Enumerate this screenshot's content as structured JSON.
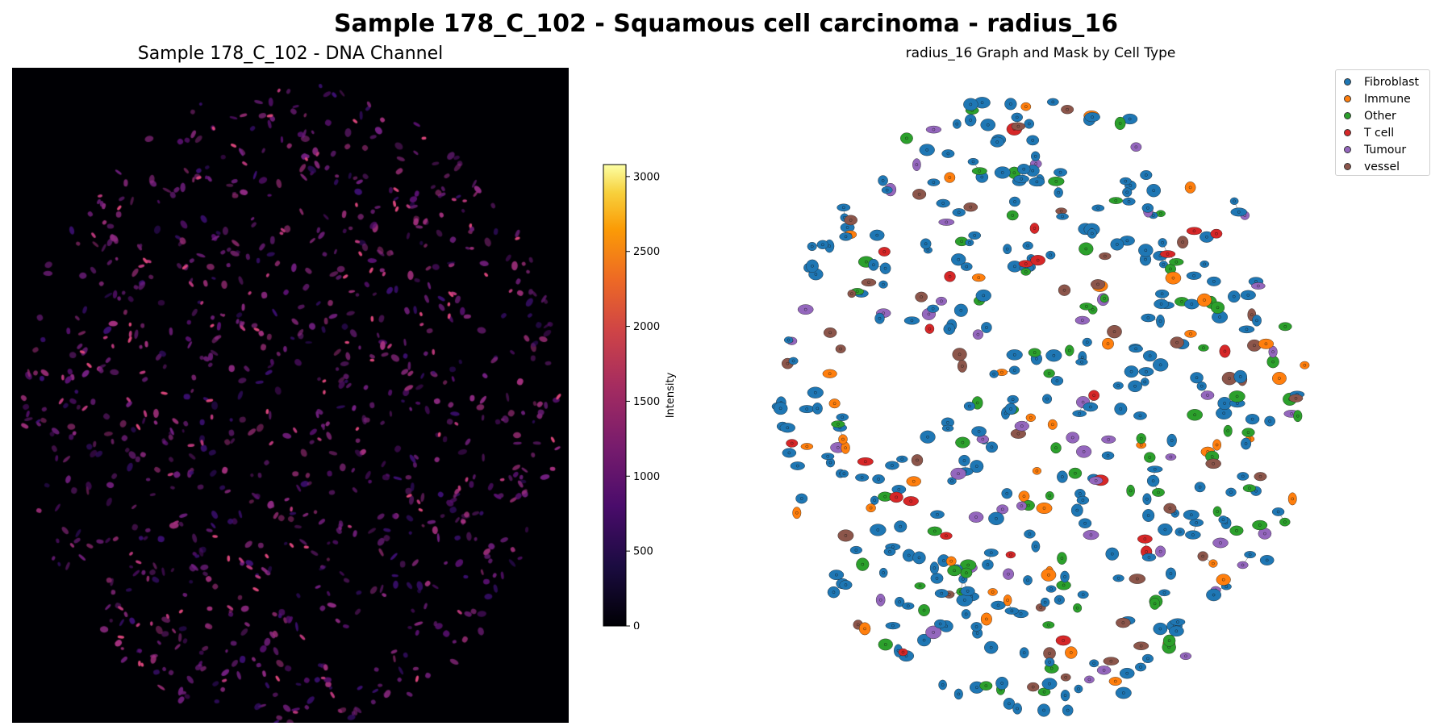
{
  "figure": {
    "suptitle": "Sample 178_C_102 - Squamous cell carcinoma - radius_16"
  },
  "chart_data": [
    {
      "type": "heatmap",
      "title": "Sample 178_C_102 - DNA Channel",
      "colormap": "inferno",
      "colorbar": {
        "label": "Intensity",
        "range": [
          0,
          3080
        ],
        "ticks": [
          0,
          500,
          1000,
          1500,
          2000,
          2500,
          3000
        ]
      },
      "background_color": "#000004",
      "axes_visible": false
    },
    {
      "type": "scatter",
      "title": "radius_16 Graph and Mask by Cell Type",
      "axes_visible": false,
      "legend_position": "top-right",
      "series": [
        {
          "name": "Fibroblast",
          "color": "#1f77b4"
        },
        {
          "name": "Immune",
          "color": "#ff7f0e"
        },
        {
          "name": "Other",
          "color": "#2ca02c"
        },
        {
          "name": "T cell",
          "color": "#d62728"
        },
        {
          "name": "Tumour",
          "color": "#9467bd"
        },
        {
          "name": "vessel",
          "color": "#8c564b"
        }
      ]
    }
  ]
}
